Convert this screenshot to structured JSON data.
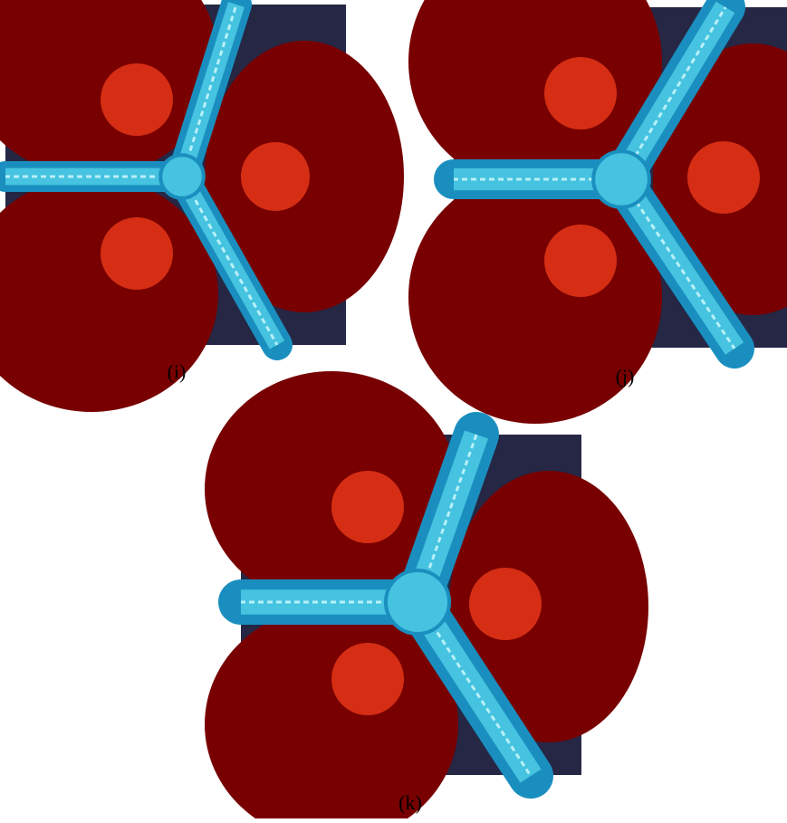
{
  "panels": [
    {
      "caption": "(i)"
    },
    {
      "caption": "(j)"
    },
    {
      "caption": "(k)"
    }
  ]
}
